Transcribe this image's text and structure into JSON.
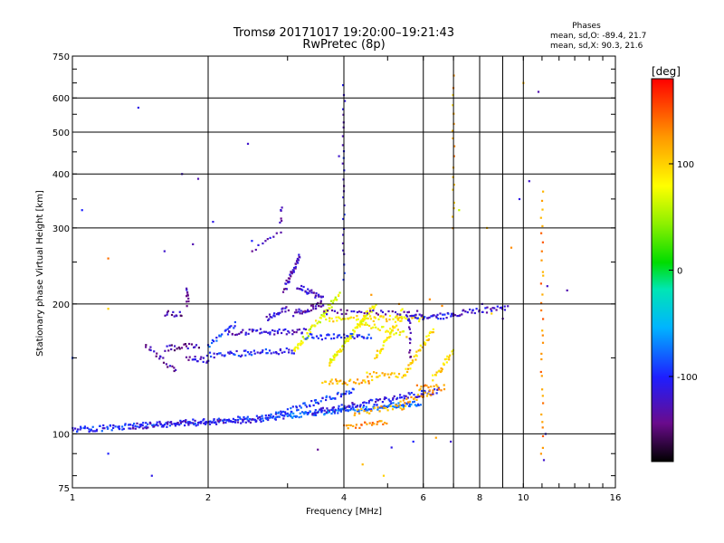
{
  "chart_data": {
    "type": "scatter",
    "title": "Tromsø 20171017 19:20:00–19:21:43",
    "subtitle": "RwPretec (8p)",
    "xlabel": "Frequency [MHz]",
    "ylabel": "Stationary phase Virtual Height [km]",
    "x_scale": "log",
    "y_scale": "log",
    "xlim": [
      1,
      16
    ],
    "ylim": [
      75,
      750
    ],
    "x_ticks": [
      1,
      2,
      4,
      6,
      8,
      10,
      16
    ],
    "x_tick_labels": [
      "1",
      "2",
      "4",
      "6",
      "8",
      "10",
      "16"
    ],
    "x_grid": [
      2,
      4,
      6,
      7,
      8,
      9,
      10
    ],
    "y_ticks": [
      75,
      100,
      200,
      300,
      400,
      500,
      600,
      750
    ],
    "y_tick_labels": [
      "75",
      "100",
      "200",
      "300",
      "400",
      "500",
      "600",
      "750"
    ],
    "y_grid": [
      100,
      200,
      300,
      400,
      500,
      600
    ],
    "grid": true,
    "stats": {
      "heading": "Phases",
      "line_o": "mean, sd,O: -89.4, 21.7",
      "line_x": "mean, sd,X:  90.3, 21.6"
    },
    "colorbar": {
      "label": "[deg]",
      "range": [
        -180,
        180
      ],
      "ticks": [
        100,
        0,
        -100
      ],
      "tick_labels": [
        "100",
        "0",
        "-100"
      ]
    },
    "traces": [
      {
        "f_start": 1.0,
        "f_end": 3.0,
        "h_start": 102,
        "h_end": 110,
        "phase": -100,
        "n": 180
      },
      {
        "f_start": 3.0,
        "f_end": 5.9,
        "h_start": 110,
        "h_end": 118,
        "phase": -80,
        "n": 130
      },
      {
        "f_start": 1.35,
        "f_end": 2.6,
        "h_start": 104,
        "h_end": 108,
        "phase": -120,
        "n": 60
      },
      {
        "f_start": 3.4,
        "f_end": 6.5,
        "h_start": 112,
        "h_end": 126,
        "phase": -110,
        "n": 90
      },
      {
        "f_start": 2.6,
        "f_end": 4.2,
        "h_start": 108,
        "h_end": 126,
        "phase": -95,
        "n": 70
      },
      {
        "f_start": 4.0,
        "f_end": 5.0,
        "h_start": 104,
        "h_end": 106,
        "phase": 130,
        "n": 25
      },
      {
        "f_start": 4.2,
        "f_end": 5.5,
        "h_start": 112,
        "h_end": 116,
        "phase": 110,
        "n": 25
      },
      {
        "f_start": 5.3,
        "f_end": 6.3,
        "h_start": 118,
        "h_end": 125,
        "phase": 120,
        "n": 20
      },
      {
        "f_start": 3.6,
        "f_end": 4.6,
        "h_start": 132,
        "h_end": 132,
        "phase": 115,
        "n": 30
      },
      {
        "f_start": 4.5,
        "f_end": 5.3,
        "h_start": 137,
        "h_end": 137,
        "phase": 105,
        "n": 20
      },
      {
        "f_start": 5.8,
        "f_end": 6.7,
        "h_start": 128,
        "h_end": 128,
        "phase": 125,
        "n": 18
      },
      {
        "f_start": 6.3,
        "f_end": 7.0,
        "h_start": 134,
        "h_end": 155,
        "phase": 95,
        "n": 25
      },
      {
        "f_start": 5.4,
        "f_end": 6.3,
        "h_start": 135,
        "h_end": 175,
        "phase": 100,
        "n": 40
      },
      {
        "f_start": 4.7,
        "f_end": 5.4,
        "h_start": 150,
        "h_end": 192,
        "phase": 90,
        "n": 40
      },
      {
        "f_start": 3.7,
        "f_end": 4.7,
        "h_start": 145,
        "h_end": 200,
        "phase": 80,
        "n": 80
      },
      {
        "f_start": 3.1,
        "f_end": 3.9,
        "h_start": 155,
        "h_end": 210,
        "phase": 70,
        "n": 60
      },
      {
        "f_start": 3.6,
        "f_end": 6.0,
        "h_start": 185,
        "h_end": 185,
        "phase": 90,
        "n": 60
      },
      {
        "f_start": 4.3,
        "f_end": 5.5,
        "h_start": 180,
        "h_end": 170,
        "phase": 85,
        "n": 30
      },
      {
        "f_start": 5.5,
        "f_end": 7.0,
        "h_start": 186,
        "h_end": 188,
        "phase": -110,
        "n": 40
      },
      {
        "f_start": 7.0,
        "f_end": 9.2,
        "h_start": 190,
        "h_end": 196,
        "phase": -120,
        "n": 35
      },
      {
        "f_start": 1.6,
        "f_end": 1.9,
        "h_start": 158,
        "h_end": 160,
        "phase": -135,
        "n": 22
      },
      {
        "f_start": 1.8,
        "f_end": 2.0,
        "h_start": 150,
        "h_end": 148,
        "phase": -125,
        "n": 16
      },
      {
        "f_start": 2.0,
        "f_end": 3.1,
        "h_start": 152,
        "h_end": 156,
        "phase": -100,
        "n": 55
      },
      {
        "f_start": 2.2,
        "f_end": 3.3,
        "h_start": 172,
        "h_end": 173,
        "phase": -120,
        "n": 50
      },
      {
        "f_start": 2.0,
        "f_end": 2.3,
        "h_start": 160,
        "h_end": 180,
        "phase": -90,
        "n": 20
      },
      {
        "f_start": 3.3,
        "f_end": 4.6,
        "h_start": 168,
        "h_end": 168,
        "phase": -100,
        "n": 40
      },
      {
        "f_start": 1.45,
        "f_end": 1.7,
        "h_start": 160,
        "h_end": 140,
        "phase": -130,
        "n": 20
      },
      {
        "f_start": 1.6,
        "f_end": 1.75,
        "h_start": 190,
        "h_end": 190,
        "phase": -135,
        "n": 12
      },
      {
        "f_start": 1.8,
        "f_end": 1.8,
        "h_start": 200,
        "h_end": 215,
        "phase": -130,
        "n": 10
      },
      {
        "f_start": 2.95,
        "f_end": 3.2,
        "h_start": 215,
        "h_end": 260,
        "phase": -130,
        "n": 35
      },
      {
        "f_start": 3.15,
        "f_end": 3.6,
        "h_start": 220,
        "h_end": 205,
        "phase": -125,
        "n": 30
      },
      {
        "f_start": 3.1,
        "f_end": 3.6,
        "h_start": 190,
        "h_end": 200,
        "phase": -130,
        "n": 30
      },
      {
        "f_start": 2.7,
        "f_end": 3.0,
        "h_start": 185,
        "h_end": 195,
        "phase": -120,
        "n": 20
      },
      {
        "f_start": 3.6,
        "f_end": 5.8,
        "h_start": 192,
        "h_end": 190,
        "phase": -130,
        "n": 35
      },
      {
        "f_start": 5.6,
        "f_end": 5.6,
        "h_start": 150,
        "h_end": 190,
        "phase": -130,
        "n": 14
      },
      {
        "f_start": 4.0,
        "f_end": 4.0,
        "h_start": 230,
        "h_end": 640,
        "phase": -110,
        "n": 28
      },
      {
        "f_start": 7.0,
        "f_end": 7.0,
        "h_start": 300,
        "h_end": 670,
        "phase": 120,
        "n": 18
      },
      {
        "f_start": 11.0,
        "f_end": 11.0,
        "h_start": 90,
        "h_end": 360,
        "phase": 130,
        "n": 32
      },
      {
        "f_start": 2.5,
        "f_end": 2.9,
        "h_start": 265,
        "h_end": 295,
        "phase": -120,
        "n": 10
      },
      {
        "f_start": 2.9,
        "f_end": 2.9,
        "h_start": 310,
        "h_end": 335,
        "phase": -130,
        "n": 6
      }
    ],
    "scatter_points": [
      [
        1.05,
        330,
        -100
      ],
      [
        1.4,
        570,
        -110
      ],
      [
        1.75,
        400,
        -120
      ],
      [
        1.9,
        390,
        -130
      ],
      [
        2.05,
        310,
        -110
      ],
      [
        2.45,
        470,
        -120
      ],
      [
        2.5,
        280,
        -100
      ],
      [
        1.85,
        275,
        -130
      ],
      [
        1.6,
        265,
        -120
      ],
      [
        1.2,
        90,
        -100
      ],
      [
        1.5,
        80,
        -110
      ],
      [
        1.2,
        255,
        140
      ],
      [
        1.2,
        195,
        100
      ],
      [
        1.0,
        150,
        -90
      ],
      [
        3.5,
        92,
        -140
      ],
      [
        4.4,
        85,
        110
      ],
      [
        4.9,
        80,
        100
      ],
      [
        5.1,
        93,
        -110
      ],
      [
        5.7,
        96,
        -100
      ],
      [
        6.4,
        98,
        120
      ],
      [
        6.9,
        96,
        -120
      ],
      [
        8.3,
        300,
        110
      ],
      [
        9.4,
        270,
        130
      ],
      [
        9.8,
        350,
        -110
      ],
      [
        10.3,
        385,
        -120
      ],
      [
        10.8,
        620,
        -130
      ],
      [
        11.3,
        220,
        -120
      ],
      [
        12.5,
        215,
        -130
      ],
      [
        8.1,
        200,
        -120
      ],
      [
        8.5,
        190,
        100
      ],
      [
        9.0,
        185,
        -130
      ],
      [
        11.2,
        100,
        -110
      ],
      [
        11.1,
        87,
        -120
      ],
      [
        10.0,
        650,
        110
      ],
      [
        7.2,
        330,
        60
      ],
      [
        3.9,
        440,
        -120
      ],
      [
        5.3,
        200,
        125
      ],
      [
        6.2,
        205,
        130
      ],
      [
        4.6,
        210,
        125
      ],
      [
        6.6,
        198,
        130
      ]
    ]
  }
}
